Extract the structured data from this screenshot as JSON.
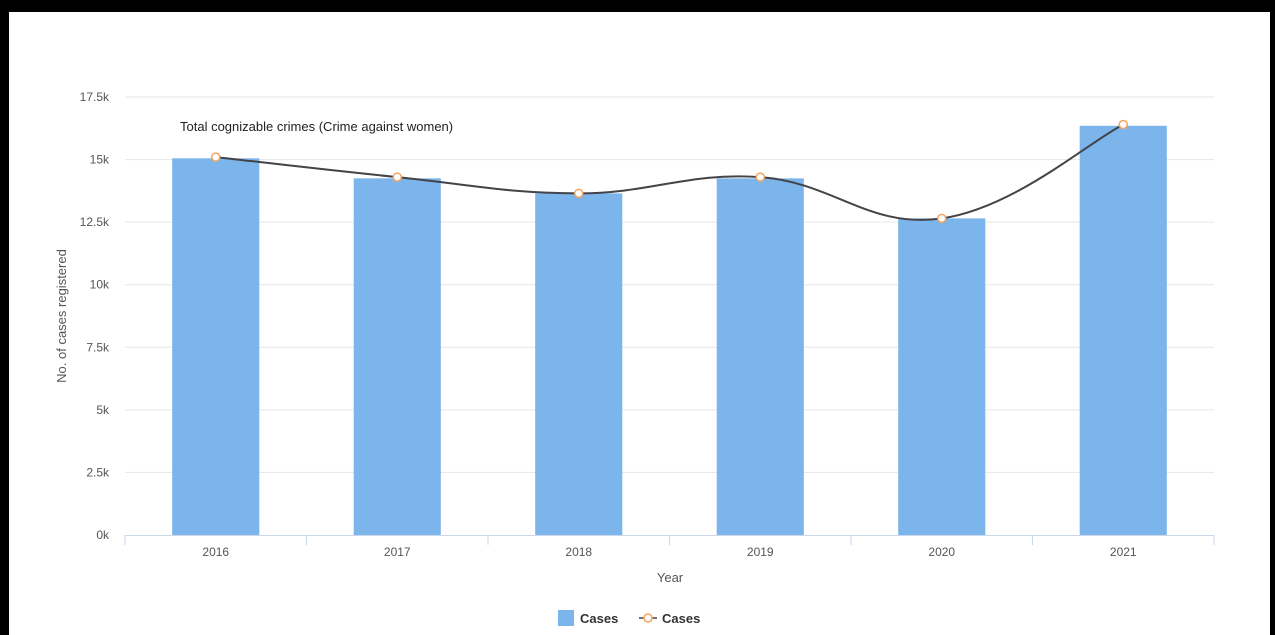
{
  "chart_data": {
    "type": "bar",
    "title": "Total cognizable crimes (Crime against women)",
    "xlabel": "Year",
    "ylabel": "No. of cases registered",
    "categories": [
      "2016",
      "2017",
      "2018",
      "2019",
      "2020",
      "2021"
    ],
    "series": [
      {
        "name": "Cases",
        "type": "bar",
        "values": [
          15050,
          14250,
          13650,
          14250,
          12650,
          16350
        ],
        "color": "#7cb5ec"
      },
      {
        "name": "Cases",
        "type": "line",
        "values": [
          15100,
          14300,
          13650,
          14300,
          12650,
          16400
        ],
        "color": "#434348",
        "marker_color": "#f7a35c"
      }
    ],
    "ylim": [
      0,
      17500
    ],
    "yticks": [
      0,
      2500,
      5000,
      7500,
      10000,
      12500,
      15000,
      17500
    ],
    "ytick_labels": [
      "0k",
      "2.5k",
      "5k",
      "7.5k",
      "10k",
      "12.5k",
      "15k",
      "17.5k"
    ],
    "grid": true,
    "legend_position": "bottom-center"
  }
}
